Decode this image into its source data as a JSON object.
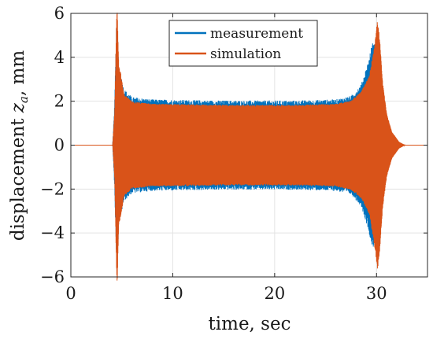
{
  "chart_data": {
    "type": "line",
    "title": "",
    "xlabel": "time, sec",
    "ylabel_prefix": "displacement ",
    "ylabel_var": "z",
    "ylabel_sub": "a",
    "ylabel_suffix": ", mm",
    "xlim": [
      0,
      35
    ],
    "ylim": [
      -6,
      6
    ],
    "xticks": [
      0,
      10,
      20,
      30
    ],
    "yticks": [
      -6,
      -4,
      -2,
      0,
      2,
      4,
      6
    ],
    "grid": true,
    "legend_position": "top-center",
    "series": [
      {
        "name": "measurement",
        "color": "#0072BD",
        "envelope": [
          [
            0,
            0
          ],
          [
            4.1,
            0
          ],
          [
            4.3,
            1.8
          ],
          [
            4.5,
            5.6
          ],
          [
            4.7,
            3.4
          ],
          [
            4.9,
            3.0
          ],
          [
            5.2,
            2.4
          ],
          [
            6.0,
            2.05
          ],
          [
            8.0,
            1.95
          ],
          [
            15.0,
            1.9
          ],
          [
            22.0,
            1.9
          ],
          [
            26.0,
            1.95
          ],
          [
            27.5,
            2.1
          ],
          [
            28.5,
            2.6
          ],
          [
            29.2,
            3.6
          ],
          [
            29.6,
            4.4
          ],
          [
            30.0,
            4.2
          ],
          [
            30.3,
            3.3
          ],
          [
            30.6,
            2.1
          ],
          [
            30.9,
            1.0
          ],
          [
            31.3,
            0.4
          ],
          [
            32.0,
            0.1
          ],
          [
            32.5,
            0
          ],
          [
            35,
            0
          ]
        ]
      },
      {
        "name": "simulation",
        "color": "#D95319",
        "envelope": [
          [
            0,
            0
          ],
          [
            4.1,
            0
          ],
          [
            4.3,
            1.5
          ],
          [
            4.5,
            6.0
          ],
          [
            4.55,
            6.2
          ],
          [
            4.7,
            3.6
          ],
          [
            4.9,
            3.2
          ],
          [
            5.2,
            2.3
          ],
          [
            6.0,
            1.95
          ],
          [
            8.0,
            1.85
          ],
          [
            15.0,
            1.8
          ],
          [
            22.0,
            1.8
          ],
          [
            26.0,
            1.85
          ],
          [
            27.5,
            2.0
          ],
          [
            28.5,
            2.4
          ],
          [
            29.3,
            3.1
          ],
          [
            29.8,
            4.5
          ],
          [
            30.1,
            5.6
          ],
          [
            30.3,
            4.8
          ],
          [
            30.6,
            2.8
          ],
          [
            31.0,
            1.4
          ],
          [
            31.5,
            0.6
          ],
          [
            32.2,
            0.15
          ],
          [
            32.8,
            0
          ],
          [
            35,
            0
          ]
        ]
      }
    ]
  }
}
